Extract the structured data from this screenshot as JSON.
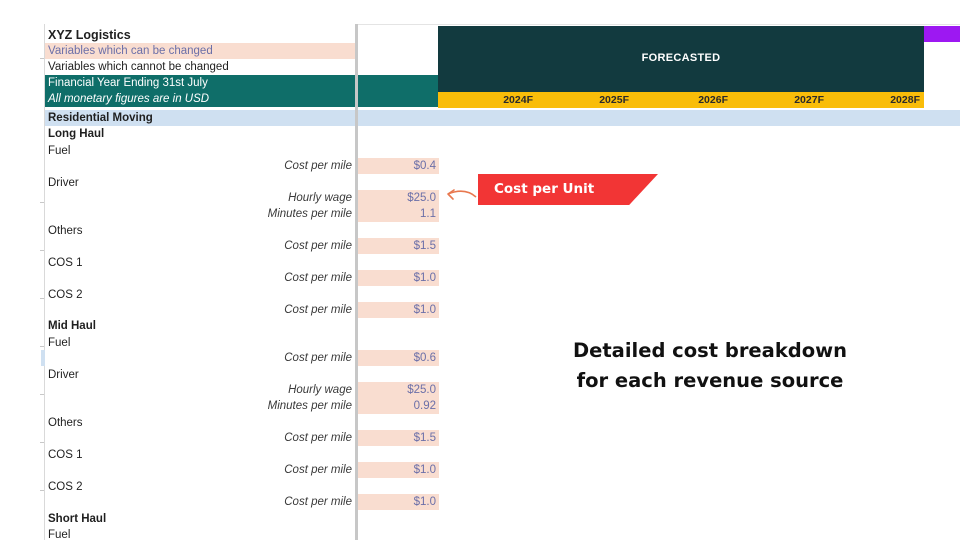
{
  "company": {
    "name": "XYZ Logistics",
    "legend_changeable": "Variables which can be changed",
    "legend_fixed": "Variables which cannot be changed",
    "fy": "Financial Year Ending 31st July",
    "currency_note": "All monetary figures are in USD"
  },
  "header": {
    "title": "FORECASTED",
    "years": [
      "2024F",
      "2025F",
      "2026F",
      "2027F",
      "2028F"
    ]
  },
  "section": "Residential Moving",
  "rows": {
    "long_haul": "Long Haul",
    "lh_fuel": "Fuel",
    "lh_fuel_cpm_label": "Cost per mile",
    "lh_fuel_cpm_value": "$0.4",
    "lh_driver": "Driver",
    "lh_wage_label": "Hourly wage",
    "lh_wage_value": "$25.0",
    "lh_mpm_label": "Minutes per mile",
    "lh_mpm_value": "1.1",
    "lh_others": "Others",
    "lh_others_label": "Cost per mile",
    "lh_others_value": "$1.5",
    "lh_cos1": "COS 1",
    "lh_cos1_label": "Cost per mile",
    "lh_cos1_value": "$1.0",
    "lh_cos2": "COS 2",
    "lh_cos2_label": "Cost per mile",
    "lh_cos2_value": "$1.0",
    "mid_haul": "Mid Haul",
    "mh_fuel": "Fuel",
    "mh_fuel_cpm_label": "Cost per mile",
    "mh_fuel_cpm_value": "$0.6",
    "mh_driver": "Driver",
    "mh_wage_label": "Hourly wage",
    "mh_wage_value": "$25.0",
    "mh_mpm_label": "Minutes per mile",
    "mh_mpm_value": "0.92",
    "mh_others": "Others",
    "mh_others_label": "Cost per mile",
    "mh_others_value": "$1.5",
    "mh_cos1": "COS 1",
    "mh_cos1_label": "Cost per mile",
    "mh_cos1_value": "$1.0",
    "mh_cos2": "COS 2",
    "mh_cos2_label": "Cost per mile",
    "mh_cos2_value": "$1.0",
    "short_haul": "Short Haul",
    "sh_fuel": "Fuel"
  },
  "annotations": {
    "callout": "Cost per Unit",
    "caption_line1": "Detailed cost breakdown",
    "caption_line2": "for each revenue source"
  },
  "colors": {
    "header_dark": "#123a3f",
    "year_bar": "#f9bd09",
    "teal": "#0f6e69",
    "input_fill": "#f9ddd0",
    "section_blue": "#cfe0f1",
    "callout_red": "#f23535",
    "accent_purple": "#9d18f2"
  }
}
